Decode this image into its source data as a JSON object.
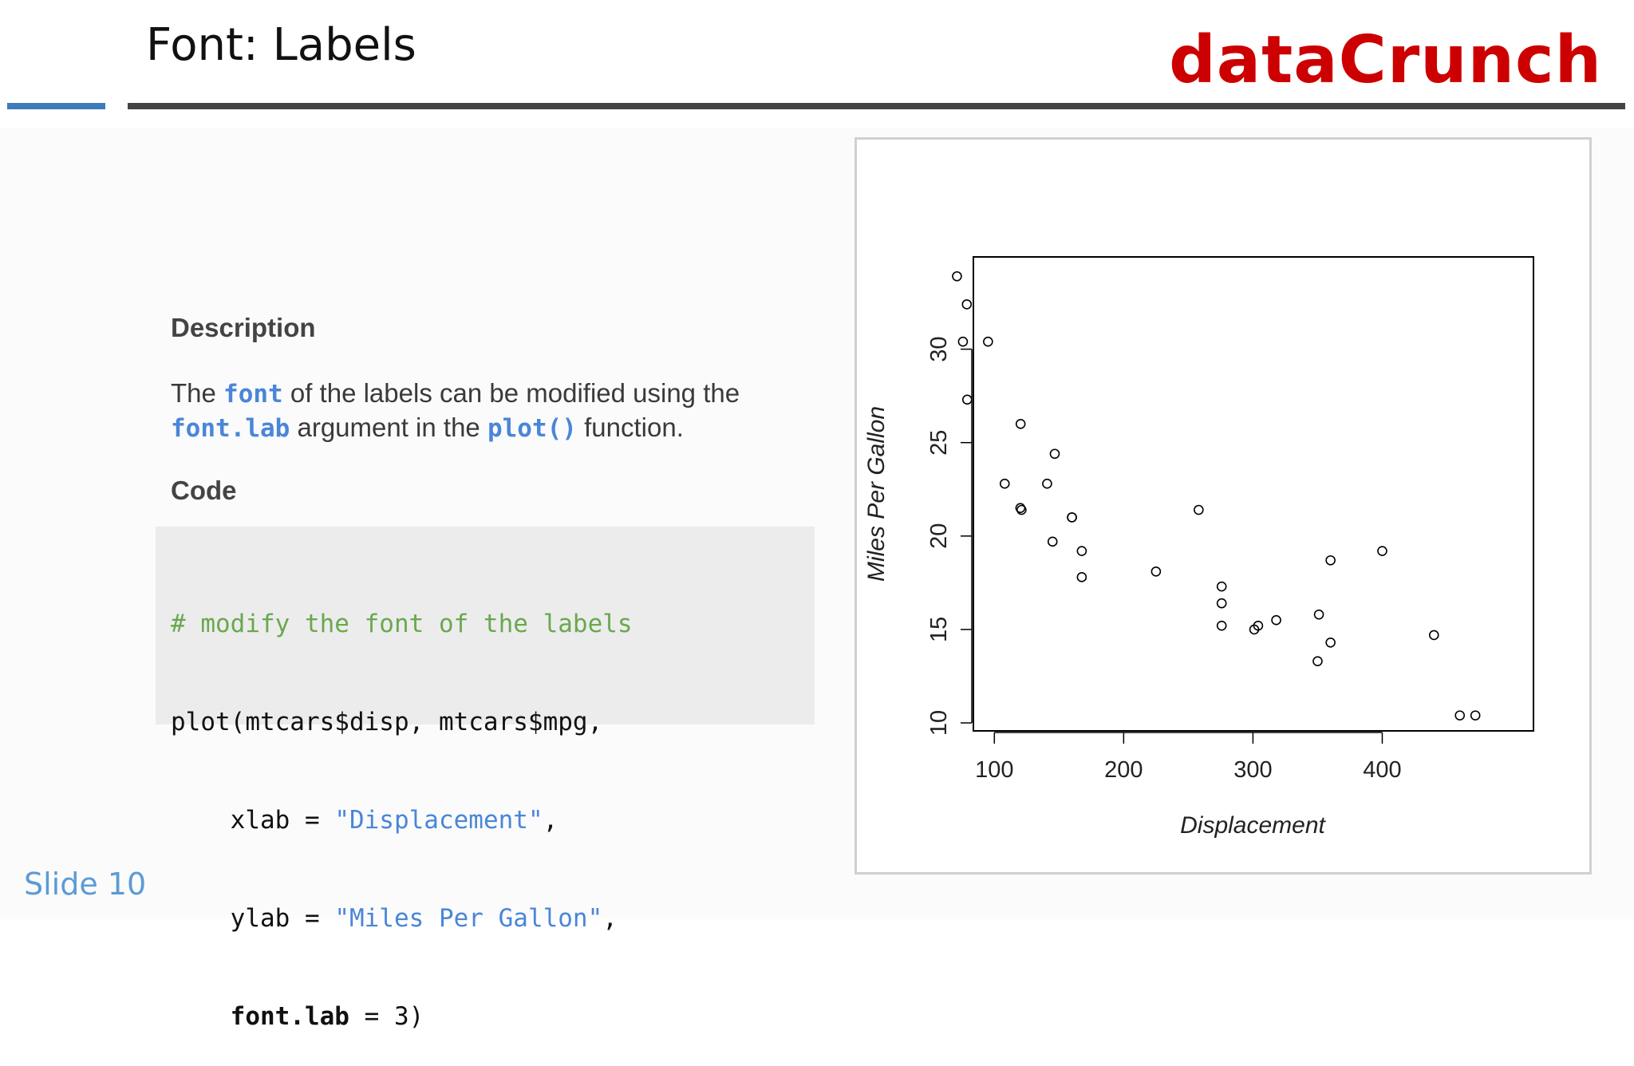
{
  "header": {
    "title": "Font: Labels",
    "logo": "dataCrunch"
  },
  "description": {
    "heading": "Description",
    "text_1": "The ",
    "kw_font": "font",
    "text_2": "  of the labels can be modified using the ",
    "kw_fontlab": "font.lab",
    "text_3": " argument in the ",
    "kw_plot": "plot()",
    "text_4": " function."
  },
  "code": {
    "heading": "Code",
    "line1": "# modify the font of the labels",
    "line2": "plot(mtcars$disp, mtcars$mpg,",
    "line3_pre": "    xlab = ",
    "line3_str": "\"Displacement\"",
    "line3_post": ",",
    "line4_pre": "    ylab = ",
    "line4_str": "\"Miles Per Gallon\"",
    "line4_post": ",",
    "line5_pre": "    ",
    "line5_bold": "font.lab",
    "line5_post": " = 3)"
  },
  "chart_data": {
    "type": "scatter",
    "xlabel": "Displacement",
    "ylabel": "Miles Per Gallon",
    "xticks": [
      100,
      200,
      300,
      400
    ],
    "yticks": [
      10,
      15,
      20,
      25,
      30
    ],
    "xlim": [
      71.1,
      472
    ],
    "ylim": [
      10.4,
      33.9
    ],
    "x": [
      160,
      160,
      108,
      258,
      360,
      225,
      360,
      146.7,
      140.8,
      167.6,
      167.6,
      275.8,
      275.8,
      275.8,
      472,
      460,
      440,
      78.7,
      75.7,
      71.1,
      120.1,
      318,
      304,
      350,
      400,
      79,
      120.3,
      95.1,
      351,
      145,
      301,
      121
    ],
    "y": [
      21,
      21,
      22.8,
      21.4,
      18.7,
      18.1,
      14.3,
      24.4,
      22.8,
      19.2,
      17.8,
      16.4,
      17.3,
      15.2,
      10.4,
      10.4,
      14.7,
      32.4,
      30.4,
      33.9,
      21.5,
      15.5,
      15.2,
      13.3,
      19.2,
      27.3,
      26,
      30.4,
      15.8,
      19.7,
      15,
      21.4
    ]
  },
  "footer": {
    "slide": "Slide 10"
  }
}
